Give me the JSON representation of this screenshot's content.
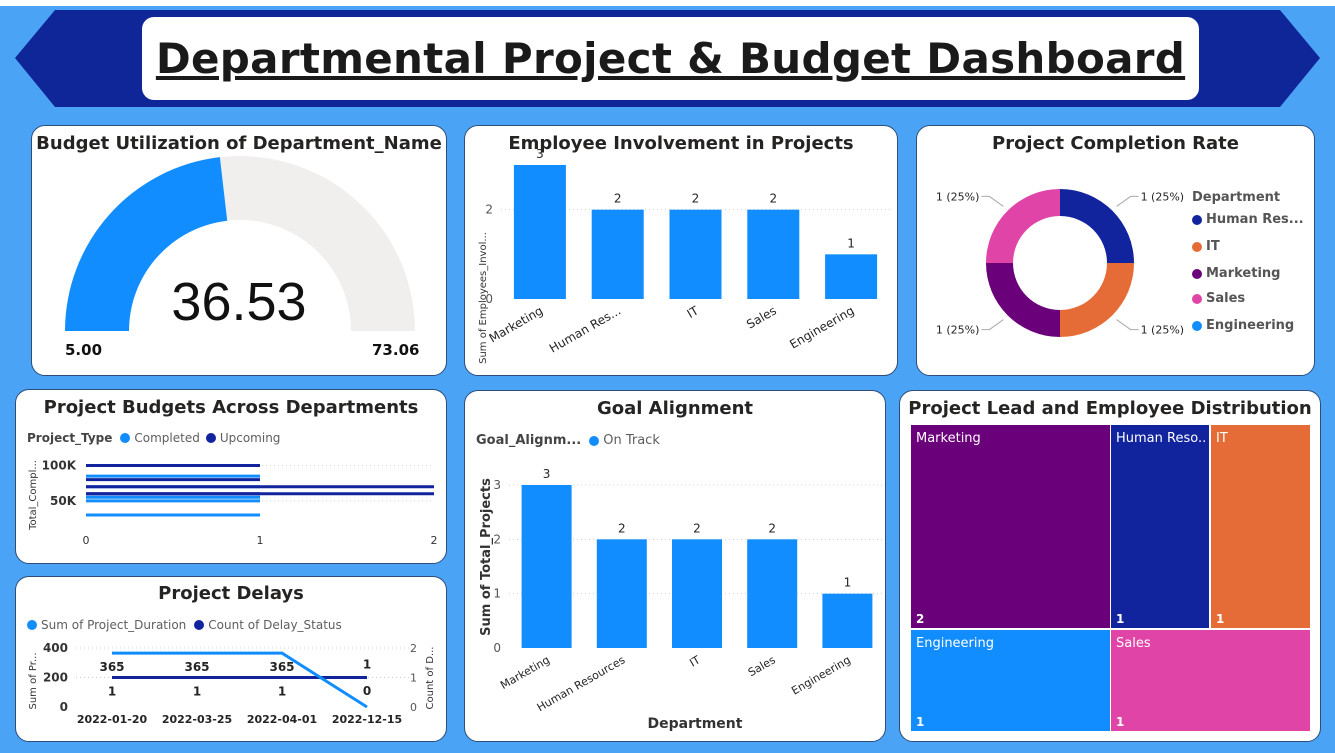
{
  "header": {
    "title": "Departmental Project & Budget Dashboard"
  },
  "colors": {
    "background": "#4aa3f5",
    "banner": "#0f2699",
    "series_light": "#118dff",
    "series_dark": "#12239e",
    "orange": "#e66c37",
    "purple": "#6b007b",
    "pink": "#e044a7",
    "gray": "#f0efee"
  },
  "gauge": {
    "title": "Budget Utilization of Department_Name",
    "value_label": "36.53",
    "min_label": "5.00",
    "max_label": "73.06",
    "value": 36.53,
    "min": 5.0,
    "max": 73.06
  },
  "involvement": {
    "title": "Employee Involvement in Projects",
    "ylabel": "Sum of Employees_Invol...",
    "tick_labels": [
      "0",
      "2"
    ]
  },
  "completion": {
    "title": "Project Completion Rate",
    "legend_title": "Department",
    "slice_labels": [
      "1 (25%)",
      "1 (25%)",
      "1 (25%)",
      "1 (25%)"
    ],
    "legend_items": [
      {
        "label": "Human Res...",
        "color": "#12239e"
      },
      {
        "label": "IT",
        "color": "#e66c37"
      },
      {
        "label": "Marketing",
        "color": "#6b007b"
      },
      {
        "label": "Sales",
        "color": "#e044a7"
      },
      {
        "label": "Engineering",
        "color": "#118dff"
      }
    ]
  },
  "budgets": {
    "title": "Project Budgets Across Departments",
    "legend_title": "Project_Type",
    "legend_items": [
      {
        "label": "Completed",
        "color": "#118dff"
      },
      {
        "label": "Upcoming",
        "color": "#12239e"
      }
    ],
    "ylabel": "Total_Compl...",
    "ytick_labels": [
      "100K",
      "50K"
    ],
    "xtick_labels": [
      "0",
      "1",
      "2"
    ]
  },
  "delays": {
    "title": "Project Delays",
    "legend_items": [
      {
        "label": "Sum of Project_Duration",
        "color": "#118dff"
      },
      {
        "label": "Count of Delay_Status",
        "color": "#12239e"
      }
    ],
    "ylabel_left": "Sum of Pr...",
    "ylabel_right": "Count of D...",
    "left_ticks": [
      "400",
      "200",
      "0"
    ],
    "right_ticks": [
      "2",
      "1",
      "0"
    ]
  },
  "goal": {
    "title": "Goal Alignment",
    "legend_title": "Goal_Alignm...",
    "legend_items": [
      {
        "label": "On Track",
        "color": "#118dff"
      }
    ],
    "ylabel": "Sum of Total_Projects",
    "xlabel": "Department",
    "tick_labels": [
      "0",
      "1",
      "2",
      "3"
    ]
  },
  "treemap": {
    "title": "Project Lead and Employee Distribution",
    "cells": [
      {
        "label": "Marketing",
        "count": "2",
        "color": "#6b007b"
      },
      {
        "label": "Human Reso...",
        "count": "1",
        "color": "#12239e"
      },
      {
        "label": "IT",
        "count": "1",
        "color": "#e66c37"
      },
      {
        "label": "Engineering",
        "count": "1",
        "color": "#118dff"
      },
      {
        "label": "Sales",
        "count": "1",
        "color": "#e044a7"
      }
    ]
  },
  "chart_data": [
    {
      "type": "gauge",
      "title": "Budget Utilization of Department_Name",
      "value": 36.53,
      "min": 5.0,
      "max": 73.06
    },
    {
      "type": "bar",
      "title": "Employee Involvement in Projects",
      "categories": [
        "Marketing",
        "Human Res...",
        "IT",
        "Sales",
        "Engineering"
      ],
      "values": [
        3,
        2,
        2,
        2,
        1
      ],
      "value_labels": [
        "3",
        "2",
        "2",
        "2",
        "1"
      ],
      "ylabel": "Sum of Employees_Invol...",
      "ylim": [
        0,
        3
      ]
    },
    {
      "type": "pie",
      "title": "Project Completion Rate",
      "categories": [
        "Human Res...",
        "IT",
        "Marketing",
        "Sales"
      ],
      "values": [
        1,
        1,
        1,
        1
      ],
      "labels": [
        "1 (25%)",
        "1 (25%)",
        "1 (25%)",
        "1 (25%)"
      ],
      "legend": "right"
    },
    {
      "type": "line",
      "title": "Project Budgets Across Departments",
      "x": [
        0,
        1,
        2
      ],
      "xlim": [
        0,
        2
      ],
      "ylim": [
        20000,
        105000
      ],
      "series": [
        {
          "name": "Completed",
          "segments": [
            {
              "x": [
                0,
                1
              ],
              "y": 85000
            },
            {
              "x": [
                0,
                1
              ],
              "y": 70000
            },
            {
              "x": [
                0,
                1
              ],
              "y": 55000
            },
            {
              "x": [
                0,
                1
              ],
              "y": 50000
            },
            {
              "x": [
                0,
                1
              ],
              "y": 30000
            }
          ]
        },
        {
          "name": "Upcoming",
          "segments": [
            {
              "x": [
                0,
                1
              ],
              "y": 100000
            },
            {
              "x": [
                0,
                1
              ],
              "y": 80000
            },
            {
              "x": [
                0,
                1
              ],
              "y": 60000
            },
            {
              "x": [
                0,
                2
              ],
              "y": 70000
            },
            {
              "x": [
                0,
                2
              ],
              "y": 60000
            }
          ]
        }
      ]
    },
    {
      "type": "line",
      "title": "Project Delays",
      "categories": [
        "2022-01-20",
        "2022-03-25",
        "2022-04-01",
        "2022-12-15"
      ],
      "series": [
        {
          "name": "Sum of Project_Duration",
          "values": [
            365,
            365,
            365,
            0
          ],
          "axis": "left",
          "labels": [
            "365",
            "365",
            "365",
            "0"
          ]
        },
        {
          "name": "Count of Delay_Status",
          "values": [
            1,
            1,
            1,
            1
          ],
          "axis": "right",
          "labels": [
            "1",
            "1",
            "1",
            "1"
          ]
        }
      ],
      "ylim_left": [
        0,
        400
      ],
      "ylim_right": [
        0,
        2
      ]
    },
    {
      "type": "bar",
      "title": "Goal Alignment",
      "categories": [
        "Marketing",
        "Human Resources",
        "IT",
        "Sales",
        "Engineering"
      ],
      "values": [
        3,
        2,
        2,
        2,
        1
      ],
      "value_labels": [
        "3",
        "2",
        "2",
        "2",
        "1"
      ],
      "xlabel": "Department",
      "ylabel": "Sum of Total_Projects",
      "ylim": [
        0,
        3
      ],
      "legend": "top-left"
    },
    {
      "type": "treemap",
      "title": "Project Lead and Employee Distribution",
      "categories": [
        "Marketing",
        "Human Reso...",
        "IT",
        "Engineering",
        "Sales"
      ],
      "values": [
        2,
        1,
        1,
        1,
        1
      ]
    }
  ]
}
